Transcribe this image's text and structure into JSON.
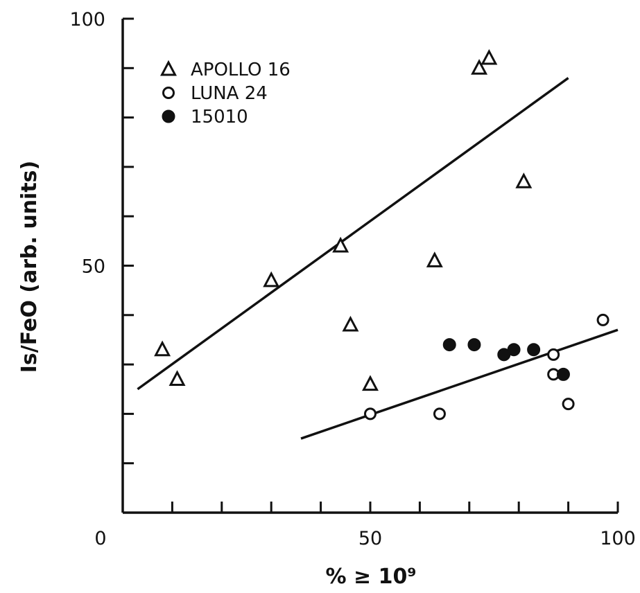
{
  "chart_data": {
    "type": "scatter",
    "title": "",
    "xlabel": "% ≥ 10⁹",
    "ylabel": "Is/FeO (arb. units)",
    "xlim": [
      0,
      100
    ],
    "ylim": [
      0,
      100
    ],
    "x_ticks": [
      0,
      10,
      20,
      30,
      40,
      50,
      60,
      70,
      80,
      90,
      100
    ],
    "y_ticks": [
      0,
      10,
      20,
      30,
      40,
      50,
      60,
      70,
      80,
      90,
      100
    ],
    "x_tick_labels": [
      "0",
      "50",
      "100"
    ],
    "x_tick_label_values": [
      0,
      50,
      100
    ],
    "y_tick_labels": [
      "50",
      "100"
    ],
    "y_tick_label_values": [
      50,
      100
    ],
    "grid": false,
    "legend_position": "top-left",
    "series": [
      {
        "name": "APOLLO 16",
        "marker": "open-triangle",
        "points": [
          [
            8,
            33
          ],
          [
            11,
            27
          ],
          [
            30,
            47
          ],
          [
            44,
            54
          ],
          [
            46,
            38
          ],
          [
            50,
            26
          ],
          [
            63,
            51
          ],
          [
            72,
            90
          ],
          [
            74,
            92
          ],
          [
            81,
            67
          ]
        ]
      },
      {
        "name": "LUNA 24",
        "marker": "open-circle",
        "points": [
          [
            50,
            20
          ],
          [
            64,
            20
          ],
          [
            87,
            32
          ],
          [
            87,
            28
          ],
          [
            90,
            22
          ],
          [
            97,
            39
          ]
        ]
      },
      {
        "name": "15010",
        "marker": "filled-circle",
        "points": [
          [
            66,
            34
          ],
          [
            71,
            34
          ],
          [
            77,
            32
          ],
          [
            79,
            33
          ],
          [
            83,
            33
          ],
          [
            89,
            28
          ]
        ]
      }
    ],
    "fit_lines": [
      {
        "from": [
          3,
          25
        ],
        "to": [
          90,
          88
        ]
      },
      {
        "from": [
          36,
          15
        ],
        "to": [
          100,
          37
        ]
      }
    ]
  }
}
